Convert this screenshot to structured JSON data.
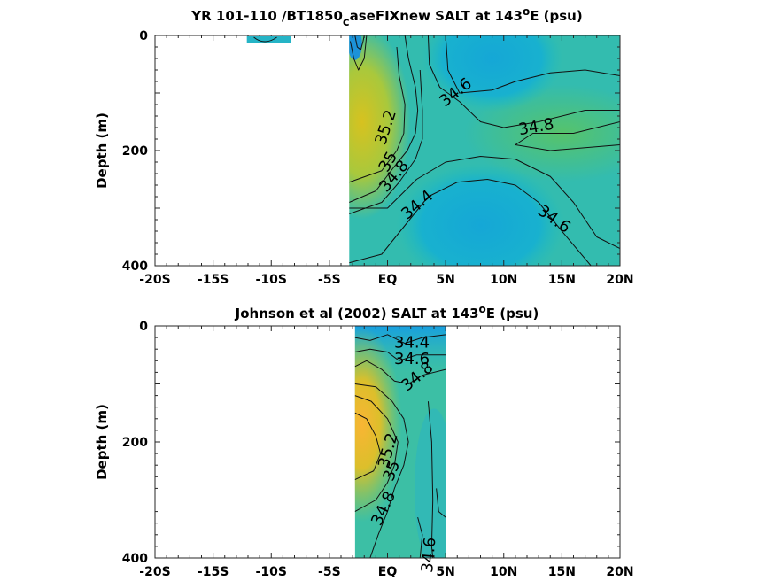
{
  "chart_data": [
    {
      "type": "heatmap",
      "subtype": "filled-contour",
      "title": "YR 101-110 /BT1850",
      "title_sub": "c",
      "title_mid": "aseFIXnew SALT at 143",
      "title_sup": "o",
      "title_end": "E (psu)",
      "ylabel": "Depth (m)",
      "xlim": [
        -20,
        20
      ],
      "ylim": [
        0,
        400
      ],
      "y_reversed": true,
      "x_ticks": [
        {
          "value": -20,
          "label": "-20S"
        },
        {
          "value": -15,
          "label": "-15S"
        },
        {
          "value": -10,
          "label": "-10S"
        },
        {
          "value": -5,
          "label": "-5S"
        },
        {
          "value": 0,
          "label": "EQ"
        },
        {
          "value": 5,
          "label": "5N"
        },
        {
          "value": 10,
          "label": "10N"
        },
        {
          "value": 15,
          "label": "15N"
        },
        {
          "value": 20,
          "label": "20N"
        }
      ],
      "y_ticks": [
        {
          "value": 0,
          "label": "0"
        },
        {
          "value": 200,
          "label": "200"
        },
        {
          "value": 400,
          "label": "400"
        }
      ],
      "data_extent": {
        "x": [
          -3.3,
          20
        ],
        "y": [
          0,
          400
        ],
        "extra_patch_x": [
          -12.1,
          -8.3
        ],
        "extra_patch_y": [
          0,
          12
        ]
      },
      "contour_labels": [
        {
          "text": "34.6",
          "x": 5.9,
          "y": 100,
          "angle": -38
        },
        {
          "text": "34.8",
          "x": 12.8,
          "y": 160,
          "angle": -10
        },
        {
          "text": "35.2",
          "x": -0.1,
          "y": 160,
          "angle": -72
        },
        {
          "text": "35",
          "x": 0.1,
          "y": 220,
          "angle": -60
        },
        {
          "text": "34.8",
          "x": 0.6,
          "y": 245,
          "angle": -50
        },
        {
          "text": "34.4",
          "x": 2.6,
          "y": 295,
          "angle": -40
        },
        {
          "text": "34.6",
          "x": 14.3,
          "y": 320,
          "angle": 35
        }
      ]
    },
    {
      "type": "heatmap",
      "subtype": "filled-contour",
      "title": "Johnson et al (2002) SALT at 143",
      "title_sup": "o",
      "title_end": "E (psu)",
      "ylabel": "Depth (m)",
      "xlim": [
        -20,
        20
      ],
      "ylim": [
        0,
        400
      ],
      "y_reversed": true,
      "x_ticks": [
        {
          "value": -20,
          "label": "-20S"
        },
        {
          "value": -15,
          "label": "-15S"
        },
        {
          "value": -10,
          "label": "-10S"
        },
        {
          "value": -5,
          "label": "-5S"
        },
        {
          "value": 0,
          "label": "EQ"
        },
        {
          "value": 5,
          "label": "5N"
        },
        {
          "value": 10,
          "label": "10N"
        },
        {
          "value": 15,
          "label": "15N"
        },
        {
          "value": 20,
          "label": "20N"
        }
      ],
      "y_ticks": [
        {
          "value": 0,
          "label": "0"
        },
        {
          "value": 200,
          "label": "200"
        },
        {
          "value": 400,
          "label": "400"
        }
      ],
      "data_extent": {
        "x": [
          -2.8,
          5
        ],
        "y": [
          0,
          400
        ]
      },
      "contour_labels": [
        {
          "text": "34.4",
          "x": 2.1,
          "y": 30,
          "angle": 0
        },
        {
          "text": "34.6",
          "x": 2.1,
          "y": 58,
          "angle": 0
        },
        {
          "text": "34.8",
          "x": 2.6,
          "y": 88,
          "angle": -40
        },
        {
          "text": "35.2",
          "x": 0.1,
          "y": 215,
          "angle": -75
        },
        {
          "text": "35",
          "x": 0.4,
          "y": 250,
          "angle": -70
        },
        {
          "text": "34.8",
          "x": -0.3,
          "y": 315,
          "angle": -65
        },
        {
          "text": "34.6",
          "x": 3.6,
          "y": 395,
          "angle": -85
        }
      ]
    }
  ]
}
